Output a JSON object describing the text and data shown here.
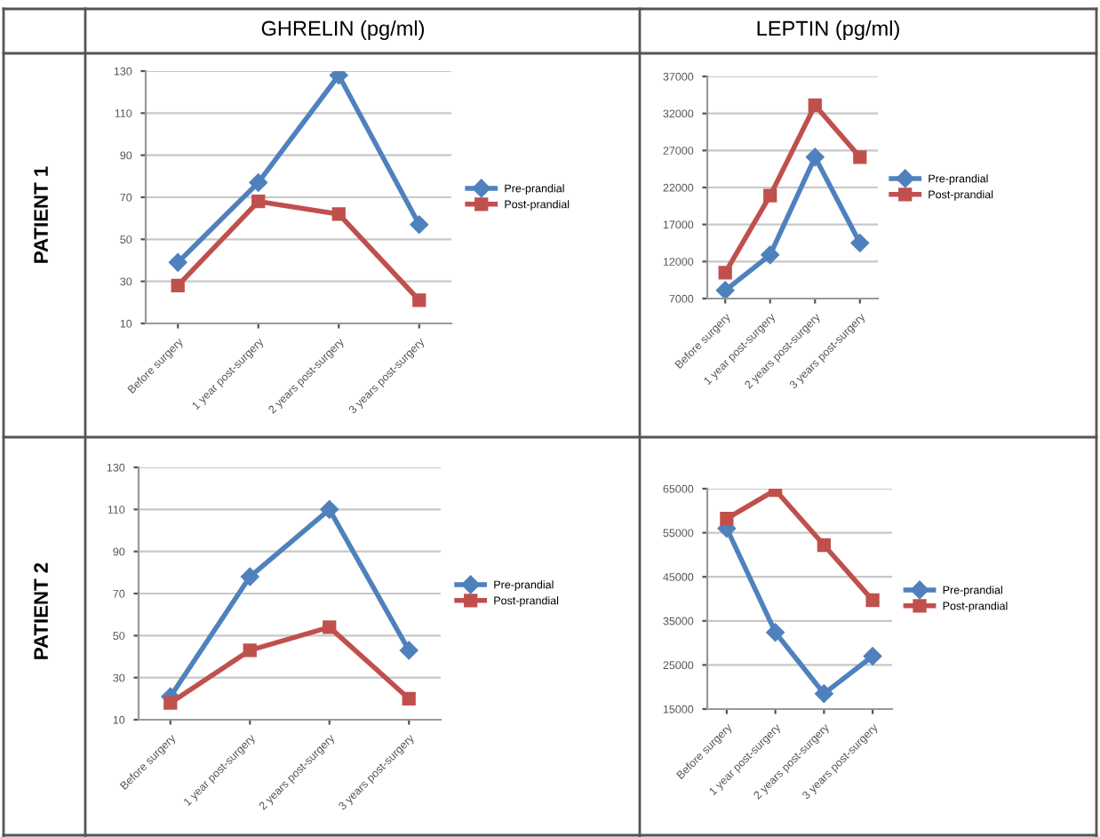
{
  "chart_data": [
    {
      "type": "line",
      "title": "GHRELIN (pg/ml)",
      "ylabel": "PATIENT 1",
      "categories": [
        "Before surgery",
        "1 year post-surgery",
        "2 years post-surgery",
        "3 years post-surgery"
      ],
      "ylim": [
        10,
        130
      ],
      "yticks": [
        10,
        30,
        50,
        70,
        90,
        110,
        130
      ],
      "grid": "y",
      "legend": "right",
      "series": [
        {
          "name": "Pre-prandial",
          "color": "#4f81bd",
          "marker": "diamond",
          "values": [
            39,
            77,
            128,
            57
          ]
        },
        {
          "name": "Post-prandial",
          "color": "#c0504d",
          "marker": "square",
          "values": [
            28,
            68,
            62,
            21
          ]
        }
      ]
    },
    {
      "type": "line",
      "title": "LEPTIN (pg/ml)",
      "categories": [
        "Before surgery",
        "1 year post-surgery",
        "2 years post-surgery",
        "3 years post-surgery"
      ],
      "ylim": [
        7000,
        37000
      ],
      "yticks": [
        7000,
        12000,
        17000,
        22000,
        27000,
        32000,
        37000
      ],
      "grid": "y",
      "legend": "right",
      "series": [
        {
          "name": "Pre-prandial",
          "color": "#4f81bd",
          "marker": "diamond",
          "values": [
            8100,
            12900,
            26100,
            14500
          ]
        },
        {
          "name": "Post-prandial",
          "color": "#c0504d",
          "marker": "square",
          "values": [
            10500,
            20900,
            33100,
            26100
          ]
        }
      ]
    },
    {
      "type": "line",
      "ylabel": "PATIENT 2",
      "categories": [
        "Before surgery",
        "1 year post-surgery",
        "2 years post-surgery",
        "3 years post-surgery"
      ],
      "ylim": [
        10,
        130
      ],
      "yticks": [
        10,
        30,
        50,
        70,
        90,
        110,
        130
      ],
      "grid": "y",
      "legend": "right",
      "series": [
        {
          "name": "Pre-prandial",
          "color": "#4f81bd",
          "marker": "diamond",
          "values": [
            21,
            78,
            110,
            43
          ]
        },
        {
          "name": "Post-prandial",
          "color": "#c0504d",
          "marker": "square",
          "values": [
            18,
            43,
            54,
            20
          ]
        }
      ]
    },
    {
      "type": "line",
      "categories": [
        "Before surgery",
        "1 year post-surgery",
        "2 years post-surgery",
        "3 years post-surgery"
      ],
      "ylim": [
        15000,
        65000
      ],
      "yticks": [
        15000,
        25000,
        35000,
        45000,
        55000,
        65000
      ],
      "grid": "y",
      "legend": "right",
      "series": [
        {
          "name": "Pre-prandial",
          "color": "#4f81bd",
          "marker": "diamond",
          "values": [
            56000,
            32400,
            18500,
            27000
          ]
        },
        {
          "name": "Post-prandial",
          "color": "#c0504d",
          "marker": "square",
          "values": [
            58200,
            64700,
            52200,
            39700
          ]
        }
      ]
    }
  ]
}
